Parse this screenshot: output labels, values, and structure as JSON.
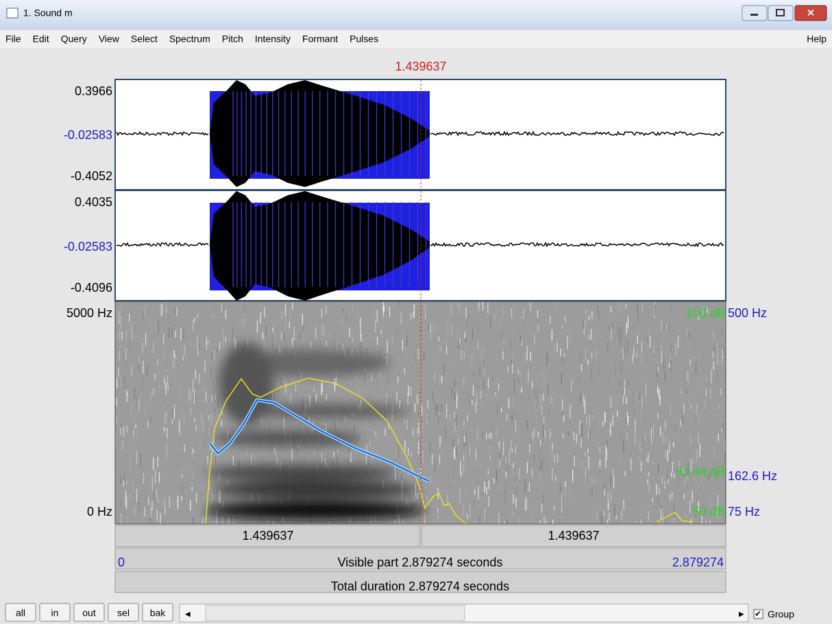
{
  "window": {
    "title": "1. Sound m",
    "menu": [
      "File",
      "Edit",
      "Query",
      "View",
      "Select",
      "Spectrum",
      "Pitch",
      "Intensity",
      "Formant",
      "Pulses"
    ],
    "help": "Help"
  },
  "cursor": {
    "time": "1.439637"
  },
  "channels": [
    {
      "max": "0.3966",
      "mid": "-0.02583",
      "min": "-0.4052"
    },
    {
      "max": "0.4035",
      "mid": "-0.02583",
      "min": "-0.4096"
    }
  ],
  "spectrogram": {
    "top": "5000 Hz",
    "bottom": "0 Hz",
    "intensity_top": "100 dB",
    "intensity_cursor": "61.44 dB",
    "intensity_bottom": "50 dB",
    "pitch_top": "500 Hz",
    "pitch_cursor": "162.6 Hz",
    "pitch_bottom": "75 Hz"
  },
  "time_bars": {
    "left": "1.439637",
    "right": "1.439637",
    "visible_start": "0",
    "visible": "Visible part 2.879274 seconds",
    "visible_end": "2.879274",
    "total": "Total duration 2.879274 seconds"
  },
  "buttons": [
    "all",
    "in",
    "out",
    "sel",
    "bak"
  ],
  "group": "Group"
}
